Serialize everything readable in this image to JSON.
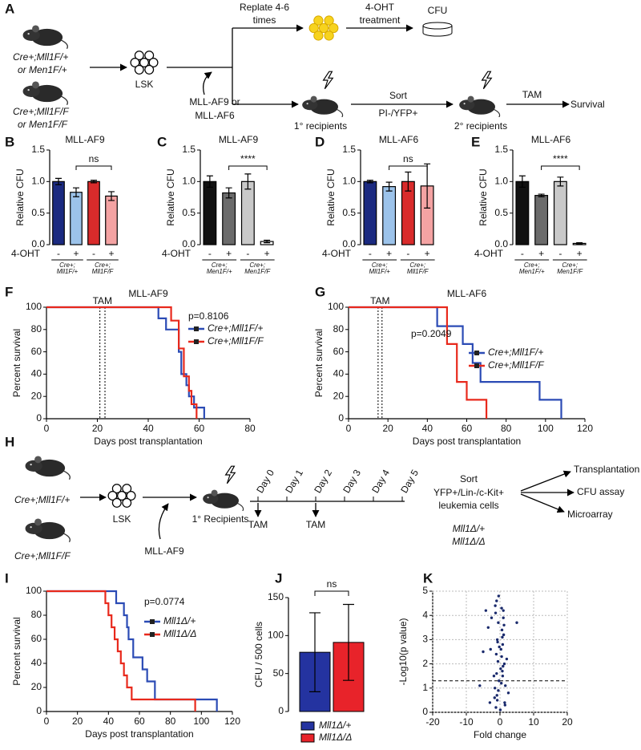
{
  "panel_labels": [
    "A",
    "B",
    "C",
    "D",
    "E",
    "F",
    "G",
    "H",
    "I",
    "J",
    "K"
  ],
  "diagram_a": {
    "genotypes": [
      [
        "Cre+;Mll1F/+",
        "or Men1F/+"
      ],
      [
        "Cre+;Mll1F/F",
        "or Men1F/F"
      ]
    ],
    "lsk": "LSK",
    "virus": [
      "MLL-AF9 or",
      "MLL-AF6"
    ],
    "replate": [
      "Replate 4-6",
      "times"
    ],
    "treatment": [
      "4-OHT",
      "treatment"
    ],
    "cfu": "CFU",
    "sort": "Sort",
    "sort_gate": "PI-/YFP+",
    "primary": "1° recipients",
    "secondary": "2° recipients",
    "tam": "TAM",
    "survival": "Survival"
  },
  "diagram_h": {
    "genotypes": [
      "Cre+;Mll1F/+",
      "Cre+;Mll1F/F"
    ],
    "lsk": "LSK",
    "virus": "MLL-AF9",
    "primary": "1° Recipients",
    "days": [
      "Day 0",
      "Day 1",
      "Day 2",
      "Day 3",
      "Day 4",
      "Day 5"
    ],
    "tam": [
      "TAM",
      "TAM"
    ],
    "sort": [
      "Sort",
      "YFP+/Lin-/c-Kit+",
      "leukemia cells"
    ],
    "genotypes_after": [
      "Mll1Δ/+",
      "Mll1Δ/Δ"
    ],
    "outputs": [
      "Transplantation",
      "CFU assay",
      "Microarray"
    ]
  },
  "chart_data": [
    {
      "type": "bar",
      "title": "MLL-AF9",
      "y_label": "Relative CFU",
      "ylim": [
        0,
        1.5
      ],
      "yticks": [
        {
          "value": 0,
          "label": "0.0"
        },
        0.5,
        {
          "value": 1,
          "label": "1.0"
        },
        1.5
      ],
      "row_label": "4-OHT",
      "categories": [
        "-",
        "+",
        "-",
        "+"
      ],
      "values": [
        1.0,
        0.83,
        1.0,
        0.77
      ],
      "errors": [
        0.05,
        0.07,
        0.02,
        0.07
      ],
      "colors": [
        "#1b2a80",
        "#9cc3ea",
        "#d92b2b",
        "#f4a3a3"
      ],
      "groups": [
        [
          "Cre+;",
          "Mll1F/+"
        ],
        [
          "Cre+;",
          "Mll1F/F"
        ]
      ],
      "annotation": "ns"
    },
    {
      "type": "bar",
      "title": "MLL-AF9",
      "y_label": "Relative CFU",
      "ylim": [
        0,
        1.5
      ],
      "yticks": [
        {
          "value": 0,
          "label": "0.0"
        },
        0.5,
        {
          "value": 1,
          "label": "1.0"
        },
        1.5
      ],
      "row_label": "4-OHT",
      "categories": [
        "-",
        "+",
        "-",
        "+"
      ],
      "values": [
        1.0,
        0.82,
        1.0,
        0.05
      ],
      "errors": [
        0.09,
        0.08,
        0.12,
        0.02
      ],
      "colors": [
        "#111111",
        "#6b6b6b",
        "#c9c9c9",
        "#ffffff"
      ],
      "groups": [
        [
          "Cre+;",
          "Men1F/+"
        ],
        [
          "Cre+;",
          "Men1F/F"
        ]
      ],
      "annotation": "****"
    },
    {
      "type": "bar",
      "title": "MLL-AF6",
      "y_label": "Relative CFU",
      "ylim": [
        0,
        1.5
      ],
      "yticks": [
        {
          "value": 0,
          "label": "0.0"
        },
        0.5,
        {
          "value": 1,
          "label": "1.0"
        },
        1.5
      ],
      "row_label": "4-OHT",
      "categories": [
        "-",
        "+",
        "-",
        "+"
      ],
      "values": [
        1.0,
        0.92,
        1.0,
        0.93
      ],
      "errors": [
        0.02,
        0.07,
        0.15,
        0.35
      ],
      "colors": [
        "#1b2a80",
        "#9cc3ea",
        "#d92b2b",
        "#f4a3a3"
      ],
      "groups": [
        [
          "Cre+;",
          "Mll1F/+"
        ],
        [
          "Cre+;",
          "Mll1F/F"
        ]
      ],
      "annotation": "ns"
    },
    {
      "type": "bar",
      "title": "MLL-AF6",
      "y_label": "Relative CFU",
      "ylim": [
        0,
        1.5
      ],
      "yticks": [
        {
          "value": 0,
          "label": "0.0"
        },
        0.5,
        {
          "value": 1,
          "label": "1.0"
        },
        1.5
      ],
      "row_label": "4-OHT",
      "categories": [
        "-",
        "+",
        "-",
        "+"
      ],
      "values": [
        1.0,
        0.78,
        1.0,
        0.02
      ],
      "errors": [
        0.09,
        0.02,
        0.07,
        0.01
      ],
      "colors": [
        "#111111",
        "#6b6b6b",
        "#c9c9c9",
        "#ffffff"
      ],
      "groups": [
        [
          "Cre+;",
          "Men1F/+"
        ],
        [
          "Cre+;",
          "Men1F/F"
        ]
      ],
      "annotation": "****"
    },
    {
      "type": "survival",
      "title": "MLL-AF9",
      "x_label": "Days post transplantation",
      "y_label": "Percent survival",
      "xlim": [
        0,
        80
      ],
      "xticks": [
        0,
        20,
        40,
        60,
        80
      ],
      "ylim": [
        0,
        100
      ],
      "yticks": [
        0,
        20,
        40,
        60,
        80,
        100
      ],
      "tam_label": "TAM",
      "tam_days": [
        21,
        23
      ],
      "p_value": "p=0.8106",
      "series": [
        {
          "name": "Cre+;Mll1F/+",
          "color": "#2b4bb5",
          "x": [
            0,
            44,
            44,
            47,
            47,
            52,
            52,
            53,
            53,
            55,
            55,
            56,
            56,
            58,
            58,
            62,
            62
          ],
          "values": [
            100,
            100,
            90,
            90,
            80,
            80,
            60,
            60,
            40,
            40,
            30,
            30,
            20,
            20,
            10,
            10,
            0
          ]
        },
        {
          "name": "Cre+;Mll1F/F",
          "color": "#e8291c",
          "x": [
            0,
            49,
            49,
            52,
            52,
            54,
            54,
            56,
            56,
            57,
            57,
            59,
            59
          ],
          "values": [
            100,
            100,
            88,
            88,
            63,
            63,
            38,
            38,
            25,
            25,
            13,
            13,
            0
          ]
        }
      ]
    },
    {
      "type": "survival",
      "title": "MLL-AF6",
      "x_label": "Days post transplantation",
      "y_label": "Percent survival",
      "xlim": [
        0,
        120
      ],
      "xticks": [
        0,
        20,
        40,
        60,
        80,
        100,
        120
      ],
      "ylim": [
        0,
        100
      ],
      "yticks": [
        0,
        20,
        40,
        60,
        80,
        100
      ],
      "tam_label": "TAM",
      "tam_days": [
        15,
        17
      ],
      "p_value": "p=0.2049",
      "series": [
        {
          "name": "Cre+;Mll1F/+",
          "color": "#2b4bb5",
          "x": [
            0,
            45,
            45,
            58,
            58,
            63,
            63,
            67,
            67,
            97,
            97,
            108,
            108
          ],
          "values": [
            100,
            100,
            83,
            83,
            67,
            67,
            50,
            50,
            33,
            33,
            17,
            17,
            0
          ]
        },
        {
          "name": "Cre+;Mll1F/F",
          "color": "#e8291c",
          "x": [
            0,
            50,
            50,
            55,
            55,
            60,
            60,
            70,
            70
          ],
          "values": [
            100,
            100,
            67,
            67,
            33,
            33,
            17,
            17,
            0
          ]
        }
      ]
    },
    {
      "type": "survival",
      "x_label": "Days post transplantation",
      "y_label": "Percent survival",
      "xlim": [
        0,
        120
      ],
      "xticks": [
        0,
        20,
        40,
        60,
        80,
        100,
        120
      ],
      "ylim": [
        0,
        100
      ],
      "yticks": [
        0,
        20,
        40,
        60,
        80,
        100
      ],
      "p_value": "p=0.0774",
      "series": [
        {
          "name": "Mll1Δ/+",
          "color": "#2b4bb5",
          "x": [
            0,
            45,
            45,
            50,
            50,
            52,
            52,
            53,
            53,
            56,
            56,
            62,
            62,
            65,
            65,
            70,
            70,
            110,
            110
          ],
          "values": [
            100,
            100,
            90,
            90,
            80,
            80,
            70,
            70,
            60,
            60,
            45,
            45,
            35,
            35,
            25,
            25,
            10,
            10,
            0
          ]
        },
        {
          "name": "Mll1Δ/Δ",
          "color": "#e8291c",
          "x": [
            0,
            38,
            38,
            40,
            40,
            42,
            42,
            44,
            44,
            46,
            46,
            48,
            48,
            50,
            50,
            52,
            52,
            55,
            55,
            96,
            96
          ],
          "values": [
            100,
            100,
            90,
            90,
            80,
            80,
            70,
            70,
            60,
            60,
            50,
            50,
            40,
            40,
            30,
            30,
            20,
            20,
            10,
            10,
            0
          ]
        }
      ]
    },
    {
      "type": "bar",
      "y_label": "CFU / 500 cells",
      "ylim": [
        0,
        150
      ],
      "yticks": [
        0,
        50,
        100,
        150
      ],
      "annotation": "ns",
      "series": [
        {
          "name": "Mll1Δ/+",
          "color": "#2433a0",
          "values": [
            78
          ],
          "errors": [
            52
          ]
        },
        {
          "name": "Mll1Δ/Δ",
          "color": "#e8232a",
          "values": [
            91
          ],
          "errors": [
            50
          ]
        }
      ]
    },
    {
      "type": "scatter",
      "x_label": "Fold change",
      "y_label": "-Log10(p value)",
      "xlim": [
        -20,
        20
      ],
      "xticks": [
        -20,
        -10,
        0,
        10,
        20
      ],
      "ylim": [
        0,
        5
      ],
      "yticks": [
        0,
        1,
        2,
        3,
        4,
        5
      ],
      "grid": true,
      "threshold": 1.3,
      "color": "#1a2a6c",
      "x": [
        -1.2,
        -0.8,
        -0.5,
        -0.3,
        0.2,
        0.5,
        0.8,
        1.1,
        1.4,
        -1.5,
        -1.0,
        -0.6,
        0.3,
        0.7,
        1.2,
        -1.3,
        -0.9,
        0.4,
        0.9,
        1.5,
        -1.1,
        -0.7,
        0.6,
        1.0,
        -1.4,
        -0.4,
        0.1,
        0.8,
        1.3,
        -0.2,
        -1.6,
        1.6,
        -0.5,
        0.5,
        -1.0,
        1.0,
        -0.8,
        0.7,
        -3.5,
        -4.2,
        -2.8,
        -5.0,
        -2.5,
        5.0,
        -1.8,
        2.0,
        -6.0,
        2.5,
        -3.0
      ],
      "values": [
        0.2,
        0.5,
        0.9,
        1.3,
        1.8,
        2.3,
        2.8,
        3.2,
        0.4,
        1.0,
        1.6,
        2.1,
        2.6,
        3.1,
        3.6,
        4.1,
        0.7,
        1.2,
        1.9,
        0.3,
        2.4,
        2.9,
        3.4,
        3.9,
        4.4,
        4.8,
        0.1,
        1.5,
        2.0,
        2.7,
        0.6,
        1.1,
        3.7,
        4.3,
        4.6,
        4.2,
        3.0,
        1.7,
        3.5,
        4.2,
        2.6,
        2.5,
        3.9,
        3.7,
        1.5,
        2.2,
        1.1,
        0.8,
        0.4
      ]
    }
  ]
}
